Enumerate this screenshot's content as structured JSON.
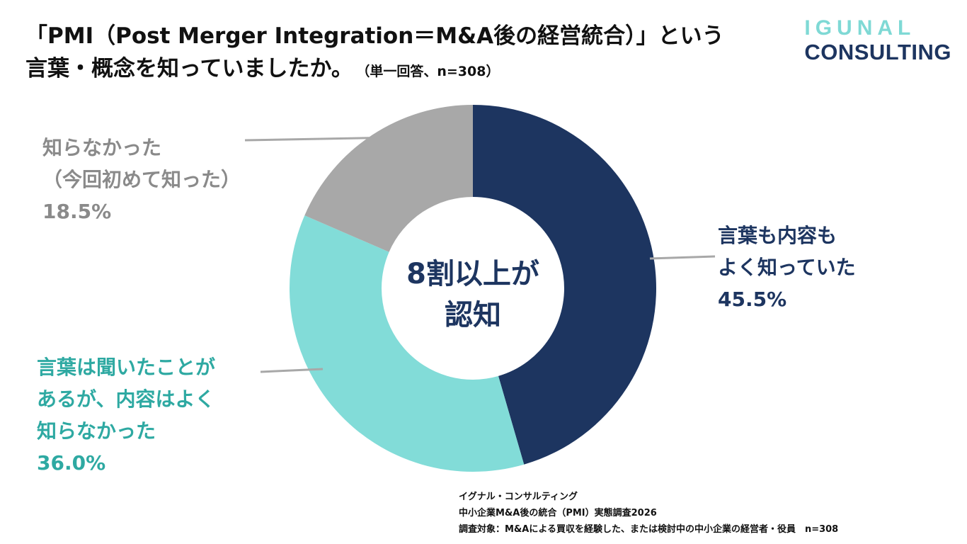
{
  "header": {
    "title_line1": "「PMI（Post Merger Integration＝M&A後の経営統合）」という",
    "title_line2": "言葉・概念を知っていましたか。",
    "note": "（単一回答、n=308）"
  },
  "logo": {
    "top": "IGUNAL",
    "bottom": "CONSULTING"
  },
  "center_text": {
    "line1": "8割以上が",
    "line2": "認知"
  },
  "labels": {
    "known_well": {
      "line1": "言葉も内容も",
      "line2": "よく知っていた",
      "value": "45.5%"
    },
    "heard_only": {
      "line1": "言葉は聞いたことが",
      "line2": "あるが、内容はよく",
      "line3": "知らなかった",
      "value": "36.0%"
    },
    "unknown": {
      "line1": "知らなかった",
      "line2": "（今回初めて知った）",
      "value": "18.5%"
    }
  },
  "footer": {
    "line1": "イグナル・コンサルティング",
    "line2": "中小企業M&A後の統合（PMI）実態調査2026",
    "line3": "調査対象：M&Aによる買収を経験した、または検討中の中小企業の経営者・役員　n=308"
  },
  "chart_data": {
    "type": "pie",
    "variant": "donut",
    "title": "「PMI（Post Merger Integration＝M&A後の経営統合）」という言葉・概念を知っていましたか。",
    "categories": [
      "言葉も内容もよく知っていた",
      "言葉は聞いたことがあるが、内容はよく知らなかった",
      "知らなかった（今回初めて知った）"
    ],
    "values": [
      45.5,
      36.0,
      18.5
    ],
    "unit": "%",
    "colors": [
      "#1d3560",
      "#82dcd8",
      "#a8a8a8"
    ],
    "n": 308
  }
}
